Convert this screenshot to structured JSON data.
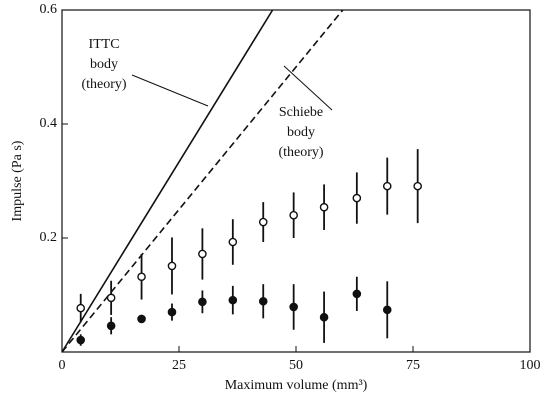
{
  "chart_data": {
    "type": "scatter",
    "x_label": "Maximum volume (mm³)",
    "y_label": "Impulse (Pa s)",
    "xlim": [
      0,
      100
    ],
    "ylim": [
      0,
      0.6
    ],
    "xticks": [
      0,
      25,
      50,
      75,
      100
    ],
    "yticks": [
      0.2,
      0.4,
      0.6
    ],
    "series": [
      {
        "marker": "open",
        "color": "#111",
        "x": [
          4,
          10.5,
          17,
          23.5,
          30,
          36.5,
          43,
          49.5,
          56,
          63,
          69.5,
          76
        ],
        "values": [
          0.077,
          0.095,
          0.132,
          0.151,
          0.172,
          0.193,
          0.228,
          0.24,
          0.254,
          0.27,
          0.291,
          0.291
        ],
        "errors": [
          0.025,
          0.03,
          0.04,
          0.05,
          0.045,
          0.04,
          0.035,
          0.04,
          0.04,
          0.045,
          0.05,
          0.065
        ]
      },
      {
        "marker": "filled",
        "color": "#111",
        "x": [
          4,
          10.5,
          17,
          23.5,
          30,
          36.5,
          43,
          49.5,
          56,
          63,
          69.5
        ],
        "values": [
          0.021,
          0.046,
          0.058,
          0.07,
          0.088,
          0.091,
          0.089,
          0.079,
          0.061,
          0.102,
          0.074
        ],
        "errors": [
          0.01,
          0.015,
          0.005,
          0.015,
          0.02,
          0.025,
          0.03,
          0.04,
          0.045,
          0.03,
          0.05
        ]
      }
    ],
    "lines": [
      {
        "style": "solid",
        "x": [
          0,
          45
        ],
        "values": [
          0,
          0.6
        ],
        "label": [
          "ITTC",
          "body",
          "(theory)"
        ]
      },
      {
        "style": "dashed",
        "x": [
          0,
          60
        ],
        "values": [
          0,
          0.6
        ],
        "label": [
          "Schiebe",
          "body",
          "(theory)"
        ]
      }
    ]
  }
}
